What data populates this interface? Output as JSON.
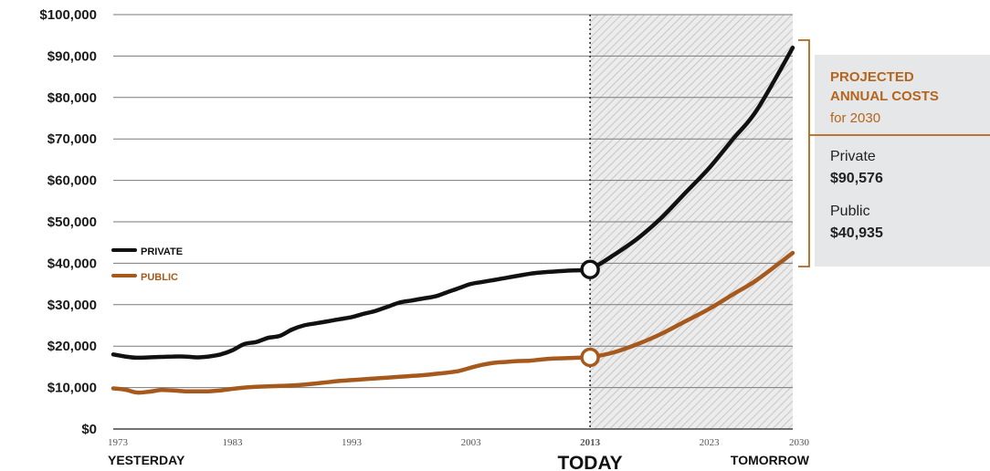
{
  "chart_data": {
    "type": "line",
    "title": "",
    "xlabel": "",
    "ylabel": "",
    "ylim": [
      0,
      100000
    ],
    "xlim": [
      1973,
      2030
    ],
    "grid": true,
    "legend_placement": "left, middle",
    "y_ticks": [
      "$0",
      "$10,000",
      "$20,000",
      "$30,000",
      "$40,000",
      "$50,000",
      "$60,000",
      "$70,000",
      "$80,000",
      "$90,000",
      "$100,000"
    ],
    "x_ticks": [
      {
        "value": 1973,
        "label": "1973"
      },
      {
        "value": 1983,
        "label": "1983"
      },
      {
        "value": 1993,
        "label": "1993"
      },
      {
        "value": 2003,
        "label": "2003"
      },
      {
        "value": 2013,
        "label": "2013"
      },
      {
        "value": 2023,
        "label": "2023"
      },
      {
        "value": 2030,
        "label": "2030"
      }
    ],
    "period_labels": {
      "left": "YESTERDAY",
      "center": "TODAY",
      "right": "TOMORROW"
    },
    "today_year": 2013,
    "series": [
      {
        "name": "PRIVATE",
        "color": "#111111",
        "x": [
          1973,
          1974,
          1975,
          1976,
          1977,
          1978,
          1979,
          1980,
          1981,
          1982,
          1983,
          1984,
          1985,
          1986,
          1987,
          1988,
          1989,
          1990,
          1991,
          1992,
          1993,
          1994,
          1995,
          1996,
          1997,
          1998,
          1999,
          2000,
          2001,
          2002,
          2003,
          2004,
          2005,
          2006,
          2007,
          2008,
          2009,
          2010,
          2011,
          2012,
          2013,
          2015,
          2017,
          2019,
          2021,
          2023,
          2025,
          2027,
          2030
        ],
        "values": [
          18000,
          17500,
          17200,
          17300,
          17400,
          17500,
          17500,
          17300,
          17500,
          18000,
          19000,
          20500,
          21000,
          22000,
          22500,
          24000,
          25000,
          25500,
          26000,
          26500,
          27000,
          27800,
          28500,
          29500,
          30500,
          31000,
          31500,
          32000,
          33000,
          34000,
          35000,
          35500,
          36000,
          36500,
          37000,
          37500,
          37800,
          38000,
          38200,
          38300,
          38500,
          42000,
          46000,
          51000,
          57000,
          63000,
          70000,
          77000,
          92000
        ]
      },
      {
        "name": "PUBLIC",
        "color": "#a6591c",
        "x": [
          1973,
          1974,
          1975,
          1976,
          1977,
          1978,
          1979,
          1980,
          1981,
          1982,
          1983,
          1984,
          1985,
          1986,
          1987,
          1988,
          1989,
          1990,
          1991,
          1992,
          1993,
          1994,
          1995,
          1996,
          1997,
          1998,
          1999,
          2000,
          2001,
          2002,
          2003,
          2004,
          2005,
          2006,
          2007,
          2008,
          2009,
          2010,
          2011,
          2012,
          2013,
          2015,
          2017,
          2019,
          2021,
          2023,
          2025,
          2027,
          2030
        ],
        "values": [
          9800,
          9500,
          8800,
          9000,
          9400,
          9300,
          9100,
          9100,
          9100,
          9300,
          9700,
          10000,
          10200,
          10300,
          10400,
          10500,
          10700,
          11000,
          11300,
          11600,
          11800,
          12000,
          12200,
          12400,
          12600,
          12800,
          13000,
          13300,
          13600,
          14000,
          14800,
          15500,
          16000,
          16200,
          16400,
          16500,
          16800,
          17000,
          17100,
          17200,
          17300,
          18500,
          20500,
          23000,
          26000,
          29000,
          32500,
          36000,
          42500
        ]
      }
    ],
    "highlight_points": [
      {
        "series": "PRIVATE",
        "x": 2013,
        "y": 38500
      },
      {
        "series": "PUBLIC",
        "x": 2013,
        "y": 17300
      }
    ]
  },
  "panel": {
    "title_line1": "PROJECTED",
    "title_line2": "ANNUAL COSTS",
    "subtitle": "for 2030",
    "private_label": "Private",
    "private_value": "$90,576",
    "public_label": "Public",
    "public_value": "$40,935"
  },
  "colors": {
    "private": "#111111",
    "public": "#a6591c",
    "accent": "#b5651d",
    "grid": "#7a7a7a",
    "shade": "#ececec",
    "panel_bg": "#e5e7e8"
  }
}
